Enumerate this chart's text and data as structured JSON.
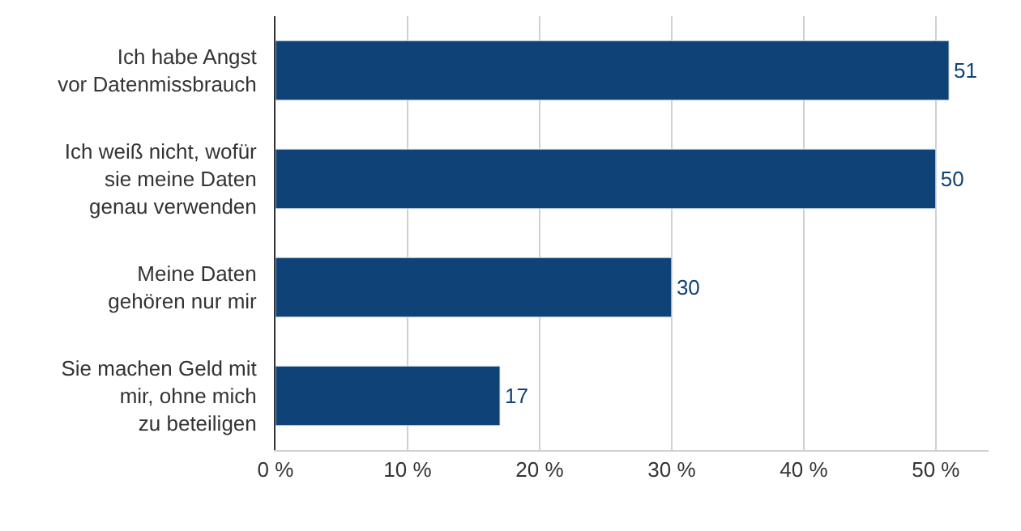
{
  "chart_data": {
    "type": "bar",
    "orientation": "horizontal",
    "categories": [
      "Ich habe Angst\nvor Datenmissbrauch",
      "Ich weiß nicht, wofür\nsie meine Daten\ngenau verwenden",
      "Meine Daten\ngehören nur mir",
      "Sie machen Geld mit\nmir, ohne mich\nzu beteiligen"
    ],
    "values": [
      51,
      50,
      30,
      17
    ],
    "color": "#0f4277",
    "data_labels": true,
    "xlim": [
      0,
      54
    ],
    "xticks": [
      {
        "value": 0,
        "label": "0 %"
      },
      {
        "value": 10,
        "label": "10 %"
      },
      {
        "value": 20,
        "label": "20 %"
      },
      {
        "value": 30,
        "label": "30 %"
      },
      {
        "value": 40,
        "label": "40 %"
      },
      {
        "value": 50,
        "label": "50 %"
      }
    ],
    "grid": "x"
  }
}
